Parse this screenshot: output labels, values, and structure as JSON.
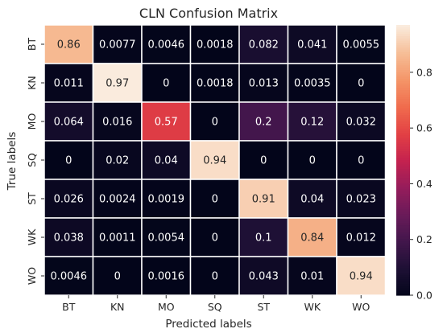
{
  "chart_data": {
    "type": "heatmap",
    "title": "CLN Confusion Matrix",
    "xlabel": "Predicted labels",
    "ylabel": "True labels",
    "x_categories": [
      "BT",
      "KN",
      "MO",
      "SQ",
      "ST",
      "WK",
      "WO"
    ],
    "y_categories": [
      "BT",
      "KN",
      "MO",
      "SQ",
      "ST",
      "WK",
      "WO"
    ],
    "values": [
      [
        "0.86",
        "0.0077",
        "0.0046",
        "0.0018",
        "0.082",
        "0.041",
        "0.0055"
      ],
      [
        "0.011",
        "0.97",
        "0",
        "0.0018",
        "0.013",
        "0.0035",
        "0"
      ],
      [
        "0.064",
        "0.016",
        "0.57",
        "0",
        "0.2",
        "0.12",
        "0.032"
      ],
      [
        "0",
        "0.02",
        "0.04",
        "0.94",
        "0",
        "0",
        "0"
      ],
      [
        "0.026",
        "0.0024",
        "0.0019",
        "0",
        "0.91",
        "0.04",
        "0.023"
      ],
      [
        "0.038",
        "0.0011",
        "0.0054",
        "0",
        "0.1",
        "0.84",
        "0.012"
      ],
      [
        "0.0046",
        "0",
        "0.0016",
        "0",
        "0.043",
        "0.01",
        "0.94"
      ]
    ],
    "colorbar": {
      "range": [
        0,
        0.97
      ],
      "ticks": [
        "0.0",
        "0.2",
        "0.4",
        "0.6",
        "0.8"
      ],
      "colormap": "rocket"
    },
    "grid": false
  }
}
